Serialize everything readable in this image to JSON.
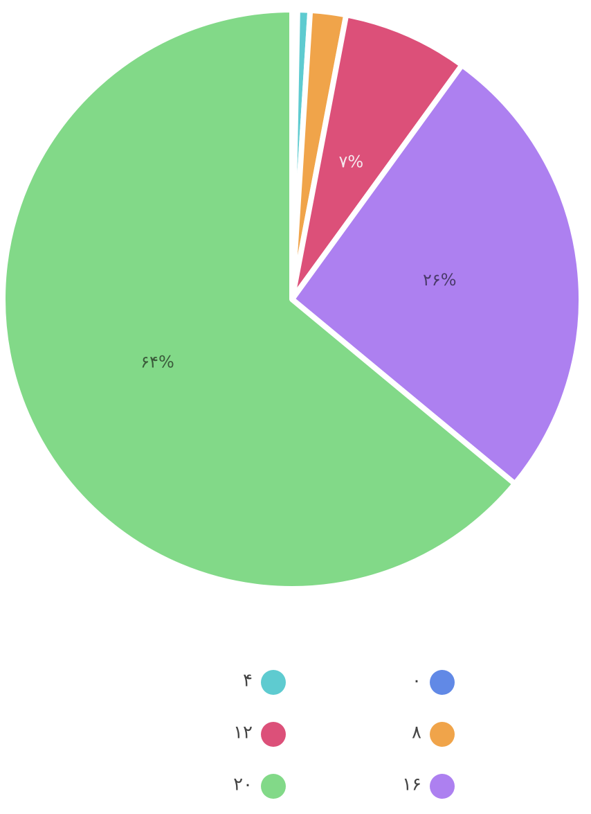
{
  "chart_data": {
    "type": "pie",
    "categories": [
      "۰",
      "۴",
      "۸",
      "۱۲",
      "۱۶",
      "۲۰"
    ],
    "values": [
      0.3,
      0.7,
      2,
      7,
      26,
      64
    ],
    "value_labels": [
      null,
      null,
      null,
      "۷%",
      "۲۶%",
      "۶۴%"
    ],
    "colors": [
      "#6189e6",
      "#5ecbd0",
      "#f0a44a",
      "#dc5079",
      "#ad80f0",
      "#82d988"
    ],
    "label_colors": [
      "#444444",
      "#444444",
      "#444444",
      "#f5e8ee",
      "#4a3a6a",
      "#3a5a3a"
    ]
  }
}
